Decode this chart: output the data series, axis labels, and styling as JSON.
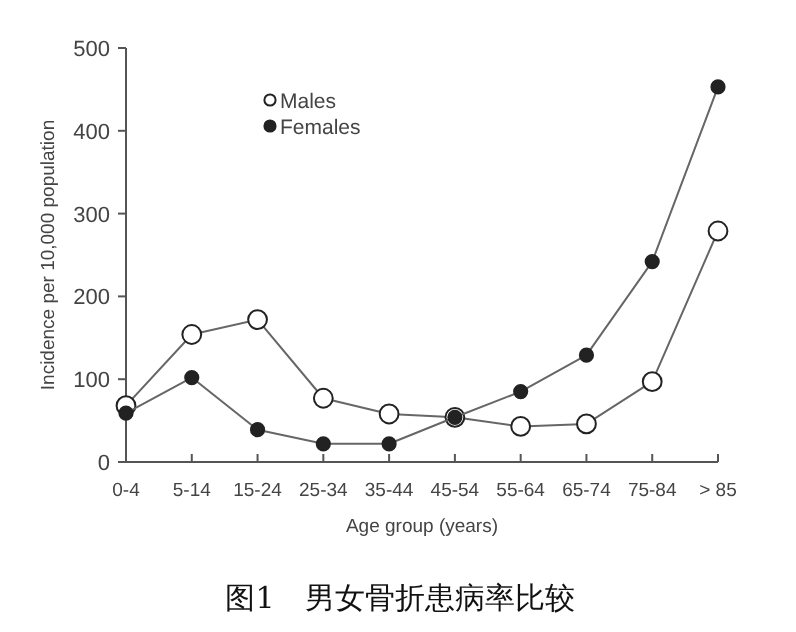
{
  "chart_data": {
    "type": "line",
    "xlabel": "Age group (years)",
    "ylabel": "Incidence per 10,000 population",
    "categories": [
      "0-4",
      "5-14",
      "15-24",
      "25-34",
      "35-44",
      "45-54",
      "55-64",
      "65-74",
      "75-84",
      "> 85"
    ],
    "series": [
      {
        "name": "Males",
        "color": "#ffffff",
        "values": [
          68,
          154,
          172,
          77,
          58,
          54,
          43,
          46,
          97,
          279
        ]
      },
      {
        "name": "Females",
        "color": "#222222",
        "values": [
          59,
          102,
          39,
          22,
          22,
          54,
          85,
          129,
          242,
          453
        ]
      }
    ],
    "ylim": [
      0,
      500
    ],
    "yticks": [
      0,
      100,
      200,
      300,
      400,
      500
    ],
    "marker": "circle",
    "line_style": "solid",
    "grid": false,
    "legend": "top left",
    "annotations": [
      "图1　男女骨折患病率比较"
    ]
  }
}
